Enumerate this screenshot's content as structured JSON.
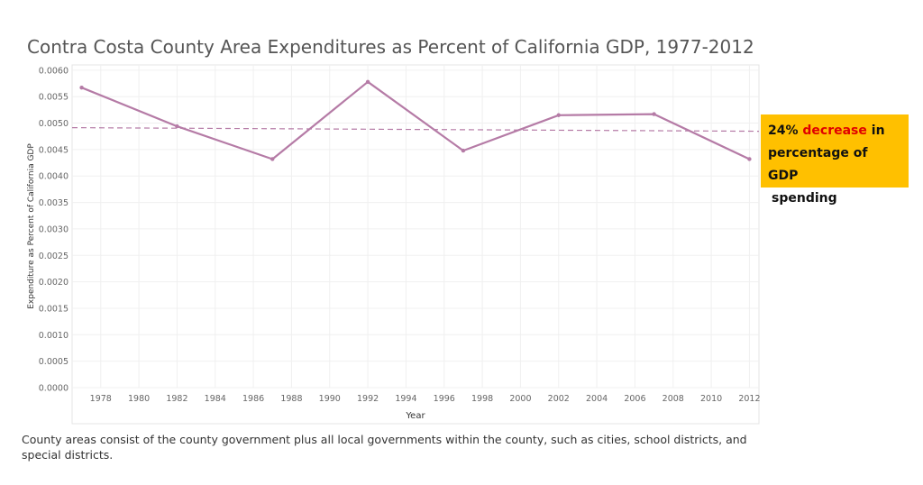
{
  "title": "Contra Costa County Area Expenditures as Percent of California GDP, 1977-2012",
  "callout": {
    "prefix": "24% ",
    "highlight": "decrease",
    "suffix": " in",
    "line2": "percentage of GDP",
    "line3": "spending",
    "background": "#ffc000",
    "highlight_color": "#e00000"
  },
  "footnote": "County areas consist of the county government plus all local governments within the county, such as cities, school districts, and special districts.",
  "chart_data": {
    "type": "line",
    "title": "Contra Costa County Area Expenditures as Percent of California GDP, 1977-2012",
    "xlabel": "Year",
    "ylabel": "Expenditure as Percent of California GDP",
    "xlim": [
      1976.5,
      2012.5
    ],
    "ylim": [
      0,
      0.0061
    ],
    "x_ticks": [
      1978,
      1980,
      1982,
      1984,
      1986,
      1988,
      1990,
      1992,
      1994,
      1996,
      1998,
      2000,
      2002,
      2004,
      2006,
      2008,
      2010,
      2012
    ],
    "y_ticks": [
      0,
      0.0005,
      0.001,
      0.0015,
      0.002,
      0.0025,
      0.003,
      0.0035,
      0.004,
      0.0045,
      0.005,
      0.0055,
      0.006
    ],
    "y_tick_labels": [
      "0.0000",
      "0.0005",
      "0.0010",
      "0.0015",
      "0.0020",
      "0.0025",
      "0.0030",
      "0.0035",
      "0.0040",
      "0.0045",
      "0.0050",
      "0.0055",
      "0.0060"
    ],
    "grid": true,
    "series": [
      {
        "color": "#b57ba6",
        "x": [
          1977,
          1982,
          1987,
          1992,
          1997,
          2002,
          2007,
          2012
        ],
        "y": [
          0.00567,
          0.00494,
          0.00432,
          0.00578,
          0.00448,
          0.00515,
          0.00517,
          0.00432
        ]
      }
    ],
    "reference_line": {
      "style": "dashed",
      "color": "#b57ba6",
      "value": 0.00488
    }
  }
}
